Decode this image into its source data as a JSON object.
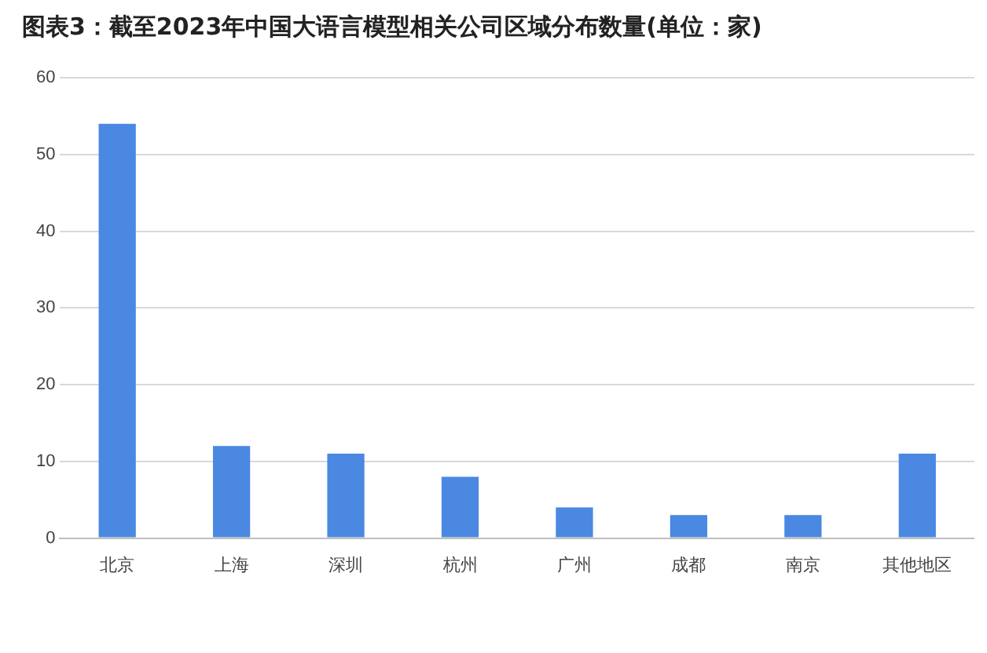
{
  "chart_data": {
    "type": "bar",
    "title": "图表3：截至2023年中国大语言模型相关公司区域分布数量(单位：家)",
    "categories": [
      "北京",
      "上海",
      "深圳",
      "杭州",
      "广州",
      "成都",
      "南京",
      "其他地区"
    ],
    "values": [
      54,
      12,
      11,
      8,
      4,
      3,
      3,
      11
    ],
    "color": "#4a88e2",
    "ylim": [
      0,
      60
    ],
    "yticks": [
      0,
      10,
      20,
      30,
      40,
      50,
      60
    ],
    "grid": "y"
  }
}
